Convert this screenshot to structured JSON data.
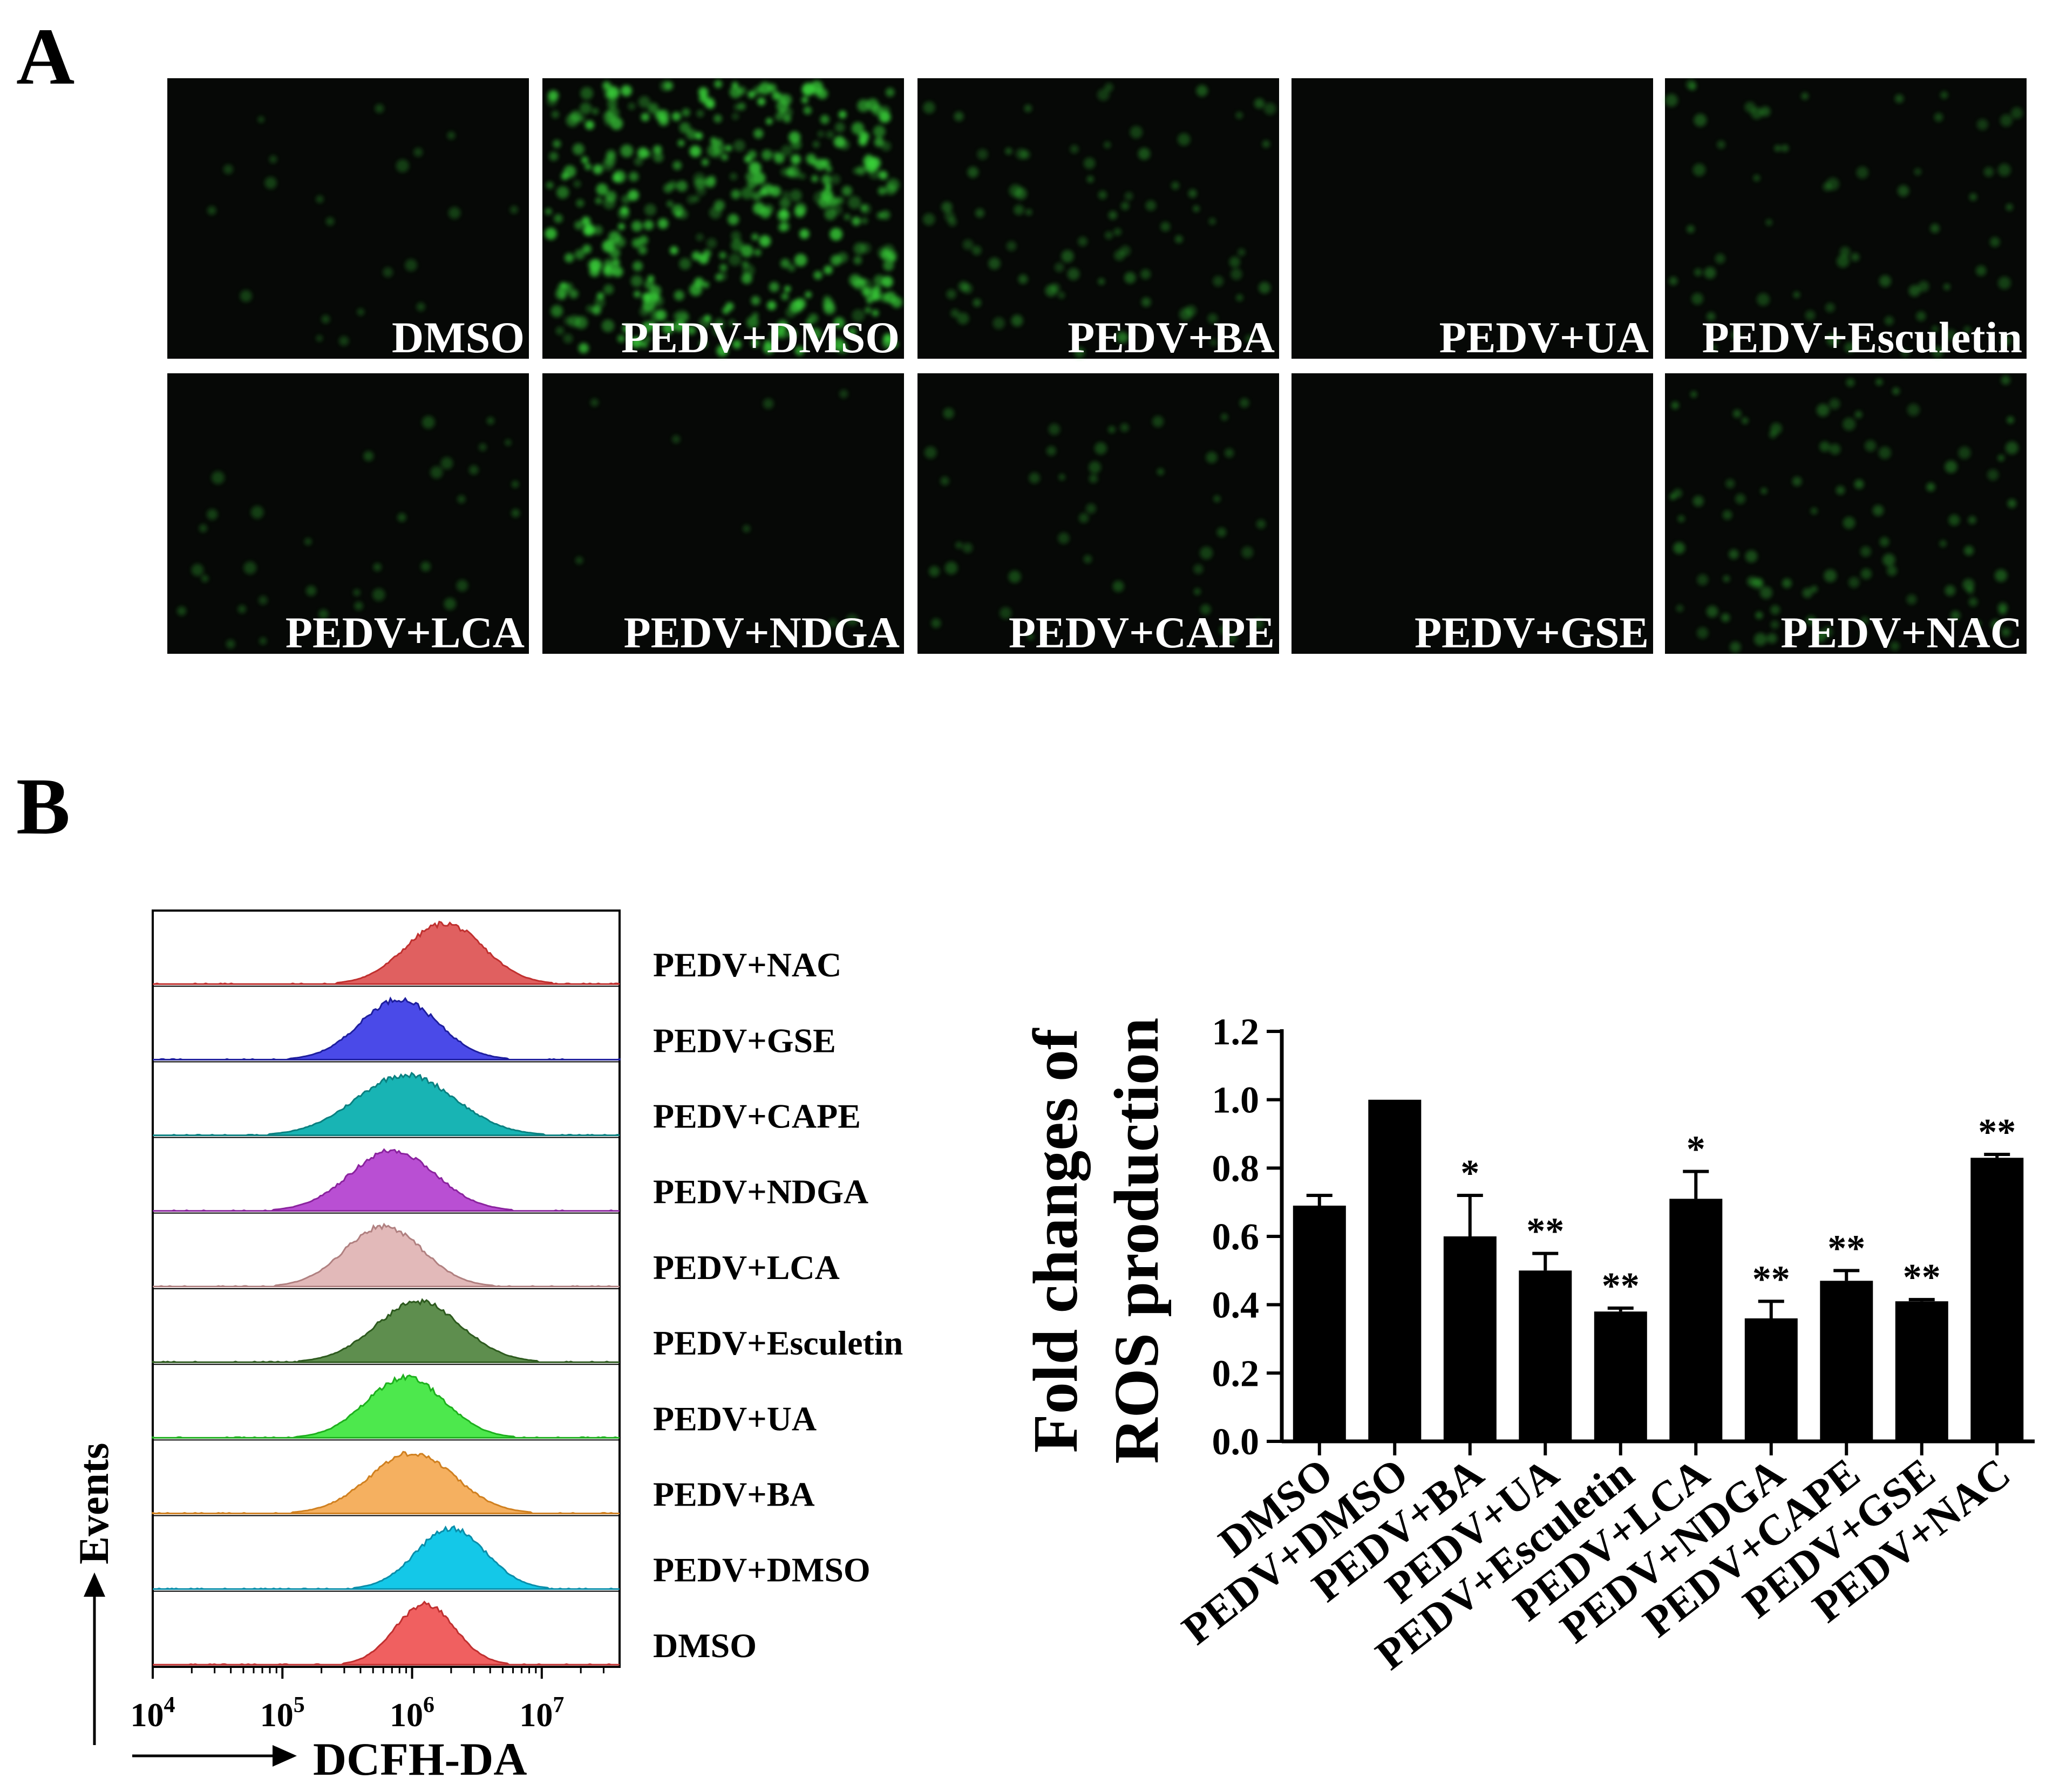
{
  "panel_a": {
    "letter": "A",
    "rows": [
      [
        "DMSO",
        "PEDV+DMSO",
        "PEDV+BA",
        "PEDV+UA",
        "PEDV+Esculetin"
      ],
      [
        "PEDV+LCA",
        "PEDV+NDGA",
        "PEDV+CAPE",
        "PEDV+GSE",
        "PEDV+NAC"
      ]
    ],
    "intensity": [
      [
        0.05,
        1.0,
        0.2,
        0.0,
        0.15
      ],
      [
        0.08,
        0.02,
        0.1,
        0.0,
        0.22
      ]
    ],
    "signal_color": "#3ad13a"
  },
  "panel_b": {
    "letter": "B",
    "histogram": {
      "x_label": "DCFH-DA",
      "y_label": "Events",
      "x_ticks": [
        {
          "base": "10",
          "exp": "4",
          "value": 4
        },
        {
          "base": "10",
          "exp": "5",
          "value": 5
        },
        {
          "base": "10",
          "exp": "6",
          "value": 6
        },
        {
          "base": "10",
          "exp": "7",
          "value": 7
        }
      ],
      "x_range_log10": [
        4,
        7.6
      ],
      "tracks": [
        {
          "label": "PEDV+NAC",
          "peak_log10": 6.25,
          "width": 0.3,
          "color": "#e06060",
          "line": "#c0302f"
        },
        {
          "label": "PEDV+GSE",
          "peak_log10": 5.9,
          "width": 0.3,
          "color": "#4a4ae8",
          "line": "#1e1e9e"
        },
        {
          "label": "PEDV+CAPE",
          "peak_log10": 5.95,
          "width": 0.38,
          "color": "#18b4b4",
          "line": "#0a8080"
        },
        {
          "label": "PEDV+NDGA",
          "peak_log10": 5.85,
          "width": 0.33,
          "color": "#b94fd3",
          "line": "#8a239e"
        },
        {
          "label": "PEDV+LCA",
          "peak_log10": 5.78,
          "width": 0.3,
          "color": "#e2b9b9",
          "line": "#b08080"
        },
        {
          "label": "PEDV+Esculetin",
          "peak_log10": 6.05,
          "width": 0.33,
          "color": "#5e8e4e",
          "line": "#2d5a1e"
        },
        {
          "label": "PEDV+UA",
          "peak_log10": 5.95,
          "width": 0.3,
          "color": "#4de84d",
          "line": "#1eb01e"
        },
        {
          "label": "PEDV+BA",
          "peak_log10": 6.0,
          "width": 0.33,
          "color": "#f5b060",
          "line": "#d08020"
        },
        {
          "label": "PEDV+DMSO",
          "peak_log10": 6.3,
          "width": 0.27,
          "color": "#14c8e8",
          "line": "#0a8eaa"
        },
        {
          "label": "DMSO",
          "peak_log10": 6.1,
          "width": 0.23,
          "color": "#f06060",
          "line": "#c03030"
        }
      ]
    },
    "bar_chart": {
      "ylabel_line1": "Fold changes of",
      "ylabel_line2": "ROS production",
      "y_ticks": [
        "0.0",
        "0.2",
        "0.4",
        "0.6",
        "0.8",
        "1.0",
        "1.2"
      ]
    }
  },
  "chart_data": [
    {
      "type": "bar",
      "categories": [
        "DMSO",
        "PEDV+DMSO",
        "PEDV+BA",
        "PEDV+UA",
        "PEDV+Esculetin",
        "PEDV+LCA",
        "PEDV+NDGA",
        "PEDV+CAPE",
        "PEDV+GSE",
        "PEDV+NAC"
      ],
      "values": [
        0.69,
        1.0,
        0.6,
        0.5,
        0.38,
        0.71,
        0.36,
        0.47,
        0.41,
        0.83
      ],
      "errors": [
        0.03,
        0.0,
        0.12,
        0.05,
        0.01,
        0.08,
        0.05,
        0.03,
        0.005,
        0.01
      ],
      "significance": [
        "",
        "",
        "*",
        "**",
        "**",
        "*",
        "**",
        "**",
        "**",
        "**"
      ],
      "xlabel": "",
      "ylabel": "Fold changes of ROS production",
      "ylim": [
        0,
        1.2
      ],
      "bar_color": "#000000"
    },
    {
      "type": "area",
      "title": "",
      "xlabel": "DCFH-DA",
      "ylabel": "Events",
      "x_scale": "log",
      "xlim": [
        10000,
        40000000
      ],
      "series": [
        {
          "name": "PEDV+NAC",
          "peak_x": 1800000
        },
        {
          "name": "PEDV+GSE",
          "peak_x": 800000
        },
        {
          "name": "PEDV+CAPE",
          "peak_x": 900000
        },
        {
          "name": "PEDV+NDGA",
          "peak_x": 700000
        },
        {
          "name": "PEDV+LCA",
          "peak_x": 600000
        },
        {
          "name": "PEDV+Esculetin",
          "peak_x": 1100000
        },
        {
          "name": "PEDV+UA",
          "peak_x": 900000
        },
        {
          "name": "PEDV+BA",
          "peak_x": 1000000
        },
        {
          "name": "PEDV+DMSO",
          "peak_x": 2000000
        },
        {
          "name": "DMSO",
          "peak_x": 1260000
        }
      ]
    }
  ]
}
